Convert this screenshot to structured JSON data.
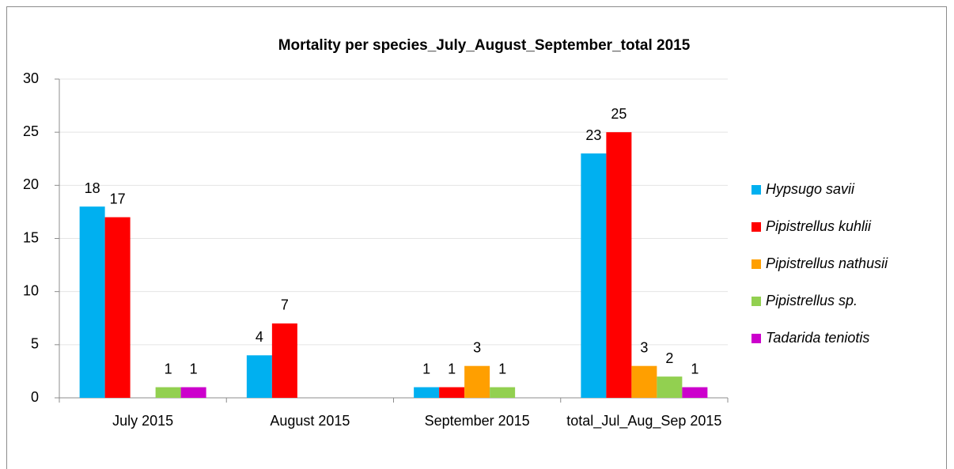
{
  "chart_data": {
    "type": "bar",
    "title": "Mortality per species_July_August_September_total 2015",
    "categories": [
      "July 2015",
      "August 2015",
      "September 2015",
      "total_Jul_Aug_Sep 2015"
    ],
    "series": [
      {
        "name": "Hypsugo savii",
        "color": "#00b0f0",
        "values": [
          18,
          4,
          1,
          23
        ]
      },
      {
        "name": "Pipistrellus kuhlii",
        "color": "#ff0000",
        "values": [
          17,
          7,
          1,
          25
        ]
      },
      {
        "name": "Pipistrellus nathusii",
        "color": "#ff9f00",
        "values": [
          null,
          null,
          3,
          3
        ]
      },
      {
        "name": "Pipistrellus sp.",
        "color": "#92d050",
        "values": [
          1,
          null,
          1,
          2
        ]
      },
      {
        "name": "Tadarida teniotis",
        "color": "#cc00cc",
        "values": [
          1,
          null,
          null,
          1
        ]
      }
    ],
    "ylim": [
      0,
      30
    ],
    "yticks": [
      0,
      5,
      10,
      15,
      20,
      25,
      30
    ],
    "grid": true,
    "legend": "right"
  }
}
